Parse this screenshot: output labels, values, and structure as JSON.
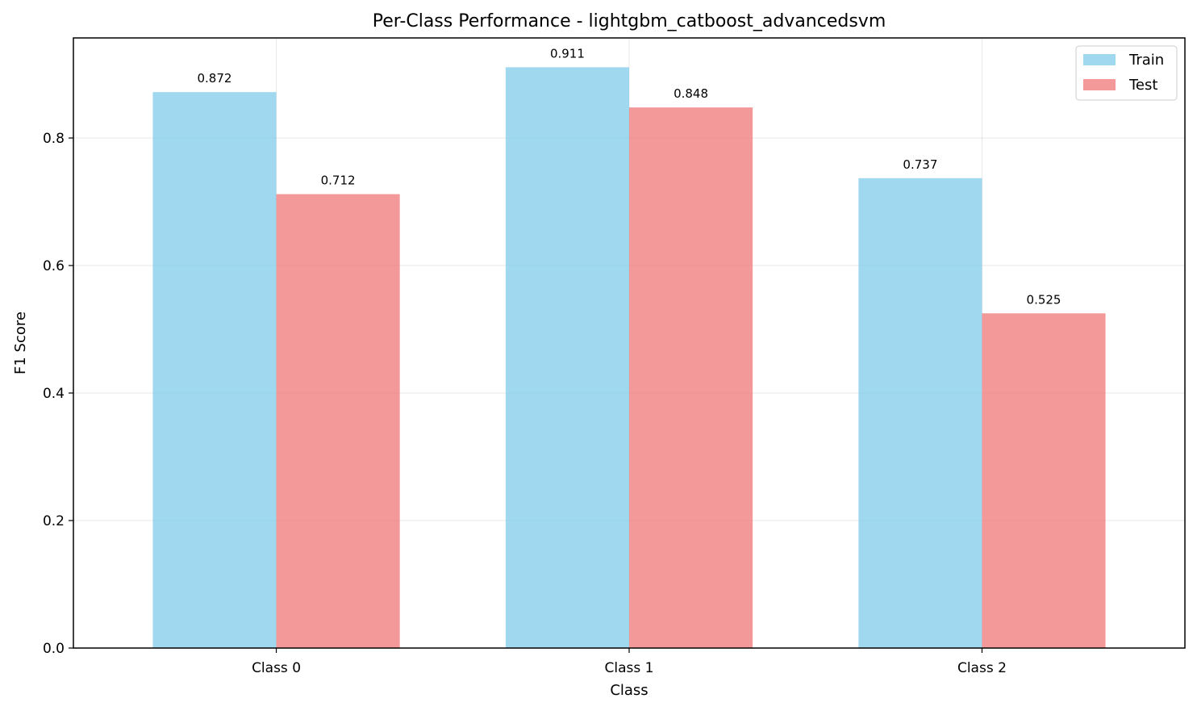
{
  "chart_data": {
    "type": "bar",
    "title": "Per-Class Performance - lightgbm_catboost_advancedsvm",
    "xlabel": "Class",
    "ylabel": "F1 Score",
    "categories": [
      "Class 0",
      "Class 1",
      "Class 2"
    ],
    "series": [
      {
        "name": "Train",
        "values": [
          0.872,
          0.911,
          0.737
        ],
        "labels": [
          "0.872",
          "0.911",
          "0.737"
        ],
        "color": "#87ceeb"
      },
      {
        "name": "Test",
        "values": [
          0.712,
          0.848,
          0.525
        ],
        "labels": [
          "0.712",
          "0.848",
          "0.525"
        ],
        "color": "#f08080"
      }
    ],
    "ylim": [
      0,
      0.957
    ],
    "yticks": [
      0.0,
      0.2,
      0.4,
      0.6,
      0.8
    ],
    "ytick_labels": [
      "0.0",
      "0.2",
      "0.4",
      "0.6",
      "0.8"
    ],
    "grid": true,
    "legend_position": "top-right"
  }
}
